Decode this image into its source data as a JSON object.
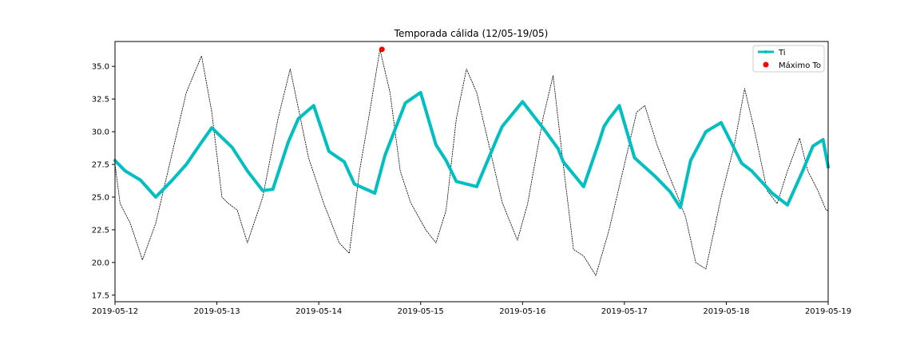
{
  "chart_data": {
    "type": "line",
    "title": "Temporada cálida (12/05-19/05)",
    "xlabel": "",
    "ylabel": "",
    "x_range": [
      "2019-05-12",
      "2019-05-19"
    ],
    "ylim": [
      17.0,
      36.9
    ],
    "x_tick_labels": [
      "2019-05-12",
      "2019-05-13",
      "2019-05-14",
      "2019-05-15",
      "2019-05-16",
      "2019-05-17",
      "2019-05-18",
      "2019-05-19"
    ],
    "y_tick_values": [
      17.5,
      20.0,
      22.5,
      25.0,
      27.5,
      30.0,
      32.5,
      35.0
    ],
    "y_tick_labels": [
      "17.5",
      "20.0",
      "22.5",
      "25.0",
      "27.5",
      "30.0",
      "32.5",
      "35.0"
    ],
    "grid": false,
    "legend_position": "top-right",
    "series": [
      {
        "name": "Ti",
        "color": "#00bfc0",
        "style": "thick-solid",
        "x_days": [
          0.0,
          0.1,
          0.25,
          0.4,
          0.55,
          0.7,
          0.85,
          0.95,
          1.15,
          1.3,
          1.45,
          1.55,
          1.7,
          1.8,
          1.95,
          2.1,
          2.25,
          2.35,
          2.55,
          2.65,
          2.85,
          3.0,
          3.15,
          3.25,
          3.35,
          3.55,
          3.75,
          3.8,
          4.0,
          4.2,
          4.35,
          4.4,
          4.6,
          4.75,
          4.8,
          4.85,
          4.95,
          5.1,
          5.3,
          5.45,
          5.55,
          5.65,
          5.8,
          5.95,
          6.15,
          6.25,
          6.45,
          6.6,
          6.75,
          6.85,
          6.95,
          7.0
        ],
        "values": [
          27.8,
          27.0,
          26.3,
          25.0,
          26.2,
          27.5,
          29.2,
          30.3,
          28.8,
          27.0,
          25.5,
          25.6,
          29.2,
          31.0,
          32.0,
          28.5,
          27.7,
          26.0,
          25.3,
          28.2,
          32.2,
          33.0,
          29.0,
          27.8,
          26.2,
          25.8,
          29.5,
          30.4,
          32.3,
          30.3,
          28.7,
          27.7,
          25.8,
          29.2,
          30.4,
          31.0,
          32.0,
          28.0,
          26.6,
          25.4,
          24.2,
          27.8,
          30.0,
          30.7,
          27.6,
          27.0,
          25.3,
          24.4,
          27.0,
          28.9,
          29.4,
          27.3
        ]
      },
      {
        "name": "To",
        "color": "#000000",
        "style": "thin-dotted",
        "x_days": [
          0.0,
          0.05,
          0.15,
          0.27,
          0.4,
          0.55,
          0.7,
          0.85,
          0.95,
          1.05,
          1.1,
          1.2,
          1.3,
          1.45,
          1.6,
          1.72,
          1.9,
          2.05,
          2.2,
          2.3,
          2.4,
          2.5,
          2.6,
          2.7,
          2.8,
          2.9,
          3.05,
          3.15,
          3.25,
          3.35,
          3.45,
          3.55,
          3.7,
          3.8,
          3.95,
          4.05,
          4.2,
          4.3,
          4.4,
          4.5,
          4.6,
          4.72,
          4.85,
          5.0,
          5.12,
          5.2,
          5.32,
          5.42,
          5.5,
          5.6,
          5.7,
          5.8,
          5.95,
          6.08,
          6.18,
          6.28,
          6.4,
          6.5,
          6.6,
          6.72,
          6.8,
          6.9,
          6.98,
          7.0
        ],
        "values": [
          27.5,
          24.5,
          23.0,
          20.2,
          23.0,
          28.0,
          33.0,
          35.8,
          31.5,
          25.0,
          24.6,
          24.0,
          21.5,
          25.0,
          31.0,
          34.8,
          28.0,
          24.5,
          21.5,
          20.7,
          27.0,
          31.5,
          36.3,
          33.0,
          27.0,
          24.6,
          22.5,
          21.5,
          24.0,
          31.0,
          34.8,
          33.0,
          28.0,
          24.6,
          21.7,
          24.5,
          31.0,
          34.3,
          27.5,
          21.0,
          20.5,
          19.0,
          22.5,
          27.5,
          31.5,
          32.0,
          29.0,
          27.0,
          25.5,
          23.5,
          20.0,
          19.5,
          25.0,
          29.0,
          33.3,
          30.0,
          25.5,
          24.5,
          27.0,
          29.5,
          27.0,
          25.5,
          24.0,
          24.0
        ]
      }
    ],
    "markers": [
      {
        "name": "Máximo To",
        "color": "#ff0000",
        "x_day": 2.62,
        "value": 36.3
      }
    ]
  }
}
